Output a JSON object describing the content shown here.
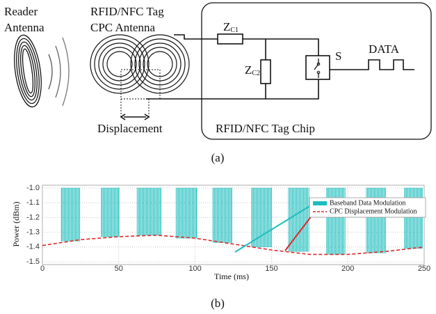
{
  "diagram": {
    "reader_antenna": [
      "Reader",
      "Antenna"
    ],
    "tag_antenna": [
      "RFID/NFC Tag",
      "CPC Antenna"
    ],
    "zc1": {
      "main": "Z",
      "sub": "C1"
    },
    "zc2": {
      "main": "Z",
      "sub": "C2"
    },
    "switch": "S",
    "data": "DATA",
    "displacement": "Displacement",
    "chip": "RFID/NFC Tag Chip",
    "caption": "(a)"
  },
  "chart_data": {
    "type": "bar",
    "xlabel": "Time (ms)",
    "ylabel": "Power (dBm)",
    "xlim": [
      0,
      250
    ],
    "xticks": [
      0,
      50,
      100,
      150,
      200,
      250
    ],
    "ylim": [
      -1.5,
      -1.0
    ],
    "yticks": [
      {
        "value": -1.0,
        "label": "-1.0"
      },
      -1.1,
      -1.2,
      -1.3,
      -1.4,
      -1.5
    ],
    "grid": true,
    "series": [
      {
        "name": "Baseband Data Modulation",
        "color": "#1ebdbd",
        "type": "bar",
        "x_start": [
          12.3,
          38.3,
          61.9,
          87.4,
          111.6,
          137,
          161,
          186,
          212,
          237
        ],
        "x_end": [
          24.5,
          50.3,
          77.9,
          101.2,
          124.3,
          150.2,
          174.6,
          198.3,
          224.8,
          249
        ],
        "values": [
          -1.36,
          -1.33,
          -1.32,
          -1.34,
          -1.37,
          -1.4,
          -1.43,
          -1.45,
          -1.44,
          -1.41
        ]
      },
      {
        "name": "CPC Displacement Modulation",
        "color": "#e02828",
        "type": "line",
        "dashed": true,
        "x": [
          0,
          25,
          50,
          75,
          100,
          125,
          150,
          175,
          200,
          225,
          250
        ],
        "values": [
          -1.39,
          -1.35,
          -1.33,
          -1.32,
          -1.34,
          -1.38,
          -1.42,
          -1.45,
          -1.45,
          -1.43,
          -1.4
        ]
      }
    ]
  },
  "caption_b": "(b)"
}
